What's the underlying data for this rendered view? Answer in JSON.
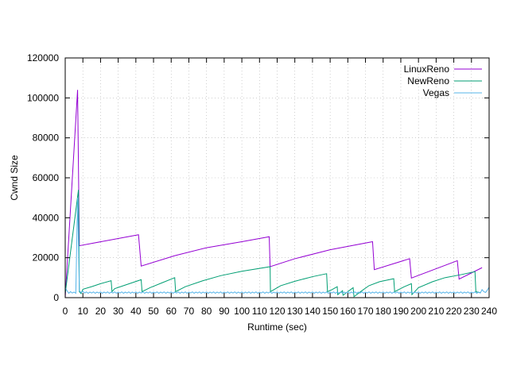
{
  "chart_data": {
    "type": "line",
    "title": "",
    "xlabel": "Runtime (sec)",
    "ylabel": "Cwnd Size",
    "xlim": [
      0,
      240
    ],
    "ylim": [
      0,
      120000
    ],
    "xticks": [
      0,
      10,
      20,
      30,
      40,
      50,
      60,
      70,
      80,
      90,
      100,
      110,
      120,
      130,
      140,
      150,
      160,
      170,
      180,
      190,
      200,
      210,
      220,
      230,
      240
    ],
    "yticks": [
      0,
      20000,
      40000,
      60000,
      80000,
      100000,
      120000
    ],
    "grid": true,
    "legend_position": "top-right",
    "series": [
      {
        "name": "LinuxReno",
        "color": "#9400d3",
        "points": [
          [
            0,
            0
          ],
          [
            7,
            104000
          ],
          [
            8,
            26000
          ],
          [
            41.5,
            31500
          ],
          [
            43,
            15800
          ],
          [
            62,
            21000
          ],
          [
            80,
            25000
          ],
          [
            100,
            28000
          ],
          [
            115.5,
            30500
          ],
          [
            116,
            15500
          ],
          [
            130,
            19500
          ],
          [
            150,
            24000
          ],
          [
            174,
            28000
          ],
          [
            175,
            14000
          ],
          [
            195,
            19500
          ],
          [
            196,
            9800
          ],
          [
            222,
            18500
          ],
          [
            223,
            9300
          ],
          [
            236,
            15000
          ]
        ]
      },
      {
        "name": "NewReno",
        "color": "#009e73",
        "points": [
          [
            0,
            2000
          ],
          [
            7.5,
            54000
          ],
          [
            8,
            3000
          ],
          [
            9,
            2000
          ],
          [
            10,
            4200
          ],
          [
            15,
            5500
          ],
          [
            20,
            7000
          ],
          [
            26,
            8500
          ],
          [
            26.5,
            3000
          ],
          [
            28,
            4500
          ],
          [
            33,
            6000
          ],
          [
            38,
            7500
          ],
          [
            43,
            9000
          ],
          [
            43.5,
            3000
          ],
          [
            48,
            5000
          ],
          [
            55,
            7500
          ],
          [
            62,
            10000
          ],
          [
            62.5,
            3000
          ],
          [
            68,
            5500
          ],
          [
            78,
            8500
          ],
          [
            88,
            11000
          ],
          [
            100,
            13200
          ],
          [
            116,
            15500
          ],
          [
            116.2,
            3000
          ],
          [
            122,
            6000
          ],
          [
            130,
            8200
          ],
          [
            140,
            10500
          ],
          [
            148,
            12000
          ],
          [
            148.5,
            3000
          ],
          [
            151,
            4000
          ],
          [
            154,
            5500
          ],
          [
            154.3,
            1500
          ],
          [
            157,
            3500
          ],
          [
            157.3,
            1200
          ],
          [
            160,
            3000
          ],
          [
            163,
            5000
          ],
          [
            163.5,
            500
          ],
          [
            168,
            3500
          ],
          [
            172,
            6000
          ],
          [
            178,
            8000
          ],
          [
            186,
            9500
          ],
          [
            186.5,
            3000
          ],
          [
            192,
            5500
          ],
          [
            196,
            7000
          ],
          [
            196.3,
            1500
          ],
          [
            200,
            5000
          ],
          [
            208,
            8000
          ],
          [
            215,
            10000
          ],
          [
            224,
            11500
          ],
          [
            232,
            13000
          ],
          [
            232.5,
            3000
          ],
          [
            235,
            2500
          ]
        ]
      },
      {
        "name": "Vegas",
        "color": "#56b4e9",
        "points": [
          [
            0,
            5000
          ],
          [
            1,
            3500
          ],
          [
            2,
            2200
          ],
          [
            3,
            3000
          ],
          [
            4,
            2300
          ],
          [
            5,
            2800
          ],
          [
            6,
            2200
          ],
          [
            7,
            50000
          ],
          [
            8,
            3500
          ],
          [
            9,
            2500
          ],
          [
            10,
            3200
          ],
          [
            11,
            2300
          ],
          [
            12,
            2900
          ],
          [
            13,
            2200
          ],
          [
            14,
            2800
          ],
          [
            15,
            2300
          ],
          [
            16,
            2900
          ],
          [
            17,
            2200
          ],
          [
            18,
            2800
          ],
          [
            19,
            2300
          ],
          [
            20,
            2900
          ],
          [
            21,
            2200
          ],
          [
            22,
            2800
          ],
          [
            23,
            2300
          ],
          [
            24,
            2900
          ],
          [
            25,
            2200
          ],
          [
            26,
            2800
          ],
          [
            27,
            2300
          ],
          [
            28,
            2900
          ],
          [
            29,
            2200
          ],
          [
            30,
            2800
          ],
          [
            31,
            2300
          ],
          [
            32,
            2900
          ],
          [
            33,
            2200
          ],
          [
            34,
            2800
          ],
          [
            35,
            2300
          ],
          [
            36,
            2900
          ],
          [
            37,
            2200
          ],
          [
            38,
            2800
          ],
          [
            39,
            2300
          ],
          [
            40,
            2900
          ],
          [
            41,
            2200
          ],
          [
            42,
            2800
          ],
          [
            43,
            2300
          ],
          [
            44,
            2900
          ],
          [
            45,
            2200
          ],
          [
            46,
            2800
          ],
          [
            47,
            2300
          ],
          [
            48,
            2900
          ],
          [
            49,
            2200
          ],
          [
            50,
            2800
          ],
          [
            51,
            2300
          ],
          [
            52,
            2900
          ],
          [
            53,
            2200
          ],
          [
            54,
            2800
          ],
          [
            55,
            2300
          ],
          [
            56,
            2900
          ],
          [
            57,
            2200
          ],
          [
            58,
            2800
          ],
          [
            59,
            2300
          ],
          [
            60,
            2900
          ],
          [
            61,
            2200
          ],
          [
            62,
            2800
          ],
          [
            63,
            2300
          ],
          [
            64,
            2900
          ],
          [
            65,
            2200
          ],
          [
            66,
            2800
          ],
          [
            67,
            2300
          ],
          [
            68,
            2900
          ],
          [
            69,
            2200
          ],
          [
            70,
            2800
          ],
          [
            71,
            2300
          ],
          [
            72,
            2900
          ],
          [
            73,
            2200
          ],
          [
            74,
            2800
          ],
          [
            75,
            2300
          ],
          [
            76,
            2900
          ],
          [
            77,
            2200
          ],
          [
            78,
            2800
          ],
          [
            79,
            2300
          ],
          [
            80,
            2900
          ],
          [
            81,
            2200
          ],
          [
            82,
            2800
          ],
          [
            83,
            2300
          ],
          [
            84,
            2900
          ],
          [
            85,
            2200
          ],
          [
            86,
            2800
          ],
          [
            87,
            2300
          ],
          [
            88,
            2900
          ],
          [
            89,
            2200
          ],
          [
            90,
            2800
          ],
          [
            91,
            2300
          ],
          [
            92,
            2900
          ],
          [
            93,
            2200
          ],
          [
            94,
            2800
          ],
          [
            95,
            2300
          ],
          [
            96,
            2900
          ],
          [
            97,
            2200
          ],
          [
            98,
            2800
          ],
          [
            99,
            2300
          ],
          [
            100,
            2900
          ],
          [
            101,
            2200
          ],
          [
            102,
            2800
          ],
          [
            103,
            2300
          ],
          [
            104,
            2900
          ],
          [
            105,
            2200
          ],
          [
            106,
            2800
          ],
          [
            107,
            2300
          ],
          [
            108,
            2900
          ],
          [
            109,
            2200
          ],
          [
            110,
            2800
          ],
          [
            111,
            2300
          ],
          [
            112,
            2900
          ],
          [
            113,
            2200
          ],
          [
            114,
            2800
          ],
          [
            115,
            2300
          ],
          [
            116,
            2900
          ],
          [
            117,
            2200
          ],
          [
            118,
            2800
          ],
          [
            119,
            2300
          ],
          [
            120,
            2900
          ],
          [
            121,
            2200
          ],
          [
            122,
            2800
          ],
          [
            123,
            2300
          ],
          [
            124,
            2900
          ],
          [
            125,
            2200
          ],
          [
            126,
            2800
          ],
          [
            127,
            2300
          ],
          [
            128,
            2900
          ],
          [
            129,
            2200
          ],
          [
            130,
            2800
          ],
          [
            131,
            2300
          ],
          [
            132,
            2900
          ],
          [
            133,
            2200
          ],
          [
            134,
            2800
          ],
          [
            135,
            2300
          ],
          [
            136,
            2900
          ],
          [
            137,
            2200
          ],
          [
            138,
            2800
          ],
          [
            139,
            2300
          ],
          [
            140,
            2900
          ],
          [
            141,
            2200
          ],
          [
            142,
            2800
          ],
          [
            143,
            2300
          ],
          [
            144,
            2900
          ],
          [
            145,
            2200
          ],
          [
            146,
            2800
          ],
          [
            147,
            2300
          ],
          [
            148,
            2900
          ],
          [
            149,
            2200
          ],
          [
            150,
            2800
          ],
          [
            151,
            2300
          ],
          [
            152,
            2900
          ],
          [
            153,
            2200
          ],
          [
            154,
            2800
          ],
          [
            155,
            2300
          ],
          [
            156,
            2900
          ],
          [
            157,
            2200
          ],
          [
            158,
            2800
          ],
          [
            159,
            2300
          ],
          [
            160,
            2900
          ],
          [
            161,
            2200
          ],
          [
            162,
            2800
          ],
          [
            163,
            2300
          ],
          [
            164,
            2900
          ],
          [
            165,
            2200
          ],
          [
            166,
            2800
          ],
          [
            167,
            2300
          ],
          [
            168,
            2900
          ],
          [
            169,
            2200
          ],
          [
            170,
            2800
          ],
          [
            171,
            2300
          ],
          [
            172,
            2900
          ],
          [
            173,
            2200
          ],
          [
            174,
            2800
          ],
          [
            175,
            2300
          ],
          [
            176,
            2900
          ],
          [
            177,
            2200
          ],
          [
            178,
            2800
          ],
          [
            179,
            2300
          ],
          [
            180,
            2900
          ],
          [
            181,
            2200
          ],
          [
            182,
            2800
          ],
          [
            183,
            2300
          ],
          [
            184,
            2900
          ],
          [
            185,
            2200
          ],
          [
            186,
            2800
          ],
          [
            187,
            2300
          ],
          [
            188,
            2900
          ],
          [
            189,
            2200
          ],
          [
            190,
            2800
          ],
          [
            191,
            2300
          ],
          [
            192,
            2900
          ],
          [
            193,
            2200
          ],
          [
            194,
            2800
          ],
          [
            195,
            2300
          ],
          [
            196,
            2900
          ],
          [
            197,
            2200
          ],
          [
            198,
            2800
          ],
          [
            199,
            2300
          ],
          [
            200,
            2900
          ],
          [
            201,
            2200
          ],
          [
            202,
            2800
          ],
          [
            203,
            2300
          ],
          [
            204,
            2900
          ],
          [
            205,
            2200
          ],
          [
            206,
            2800
          ],
          [
            207,
            2300
          ],
          [
            208,
            2900
          ],
          [
            209,
            2200
          ],
          [
            210,
            2800
          ],
          [
            211,
            2300
          ],
          [
            212,
            2900
          ],
          [
            213,
            2200
          ],
          [
            214,
            2800
          ],
          [
            215,
            2300
          ],
          [
            216,
            2900
          ],
          [
            217,
            2200
          ],
          [
            218,
            2800
          ],
          [
            219,
            2300
          ],
          [
            220,
            2900
          ],
          [
            221,
            2200
          ],
          [
            222,
            2800
          ],
          [
            223,
            2300
          ],
          [
            224,
            2900
          ],
          [
            225,
            2200
          ],
          [
            226,
            2800
          ],
          [
            227,
            2300
          ],
          [
            228,
            2900
          ],
          [
            229,
            2200
          ],
          [
            230,
            2800
          ],
          [
            231,
            2300
          ],
          [
            232,
            2900
          ],
          [
            233,
            2200
          ],
          [
            234,
            2800
          ],
          [
            235,
            2300
          ],
          [
            236,
            4000
          ],
          [
            237,
            3000
          ],
          [
            238,
            2600
          ],
          [
            239,
            3800
          ],
          [
            240,
            5200
          ]
        ]
      }
    ]
  }
}
